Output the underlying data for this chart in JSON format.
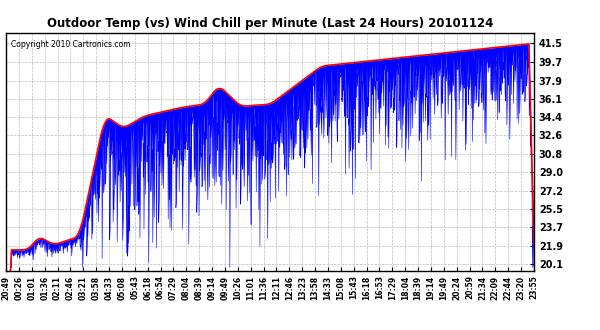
{
  "title": "Outdoor Temp (vs) Wind Chill per Minute (Last 24 Hours) 20101124",
  "copyright_text": "Copyright 2010 Cartronics.com",
  "yticks": [
    20.1,
    21.9,
    23.7,
    25.5,
    27.2,
    29.0,
    30.8,
    32.6,
    34.4,
    36.1,
    37.9,
    39.7,
    41.5
  ],
  "ylim": [
    19.5,
    42.5
  ],
  "bg_color": "#ffffff",
  "plot_bg_color": "#ffffff",
  "grid_color": "#aaaaaa",
  "title_color": "#000000",
  "red_line_color": "#ff0000",
  "blue_fill_color": "#0000ff",
  "n_points": 1440,
  "x_tick_labels": [
    "20:49",
    "00:26",
    "01:01",
    "01:36",
    "02:11",
    "02:46",
    "03:21",
    "03:58",
    "04:33",
    "05:08",
    "05:43",
    "06:18",
    "06:54",
    "07:29",
    "08:04",
    "08:39",
    "09:14",
    "09:49",
    "10:26",
    "11:01",
    "11:36",
    "12:11",
    "12:46",
    "13:23",
    "13:58",
    "14:33",
    "15:08",
    "15:43",
    "16:18",
    "16:53",
    "17:29",
    "18:04",
    "18:39",
    "19:14",
    "19:49",
    "20:24",
    "20:59",
    "21:34",
    "22:09",
    "22:44",
    "23:20",
    "23:55"
  ]
}
